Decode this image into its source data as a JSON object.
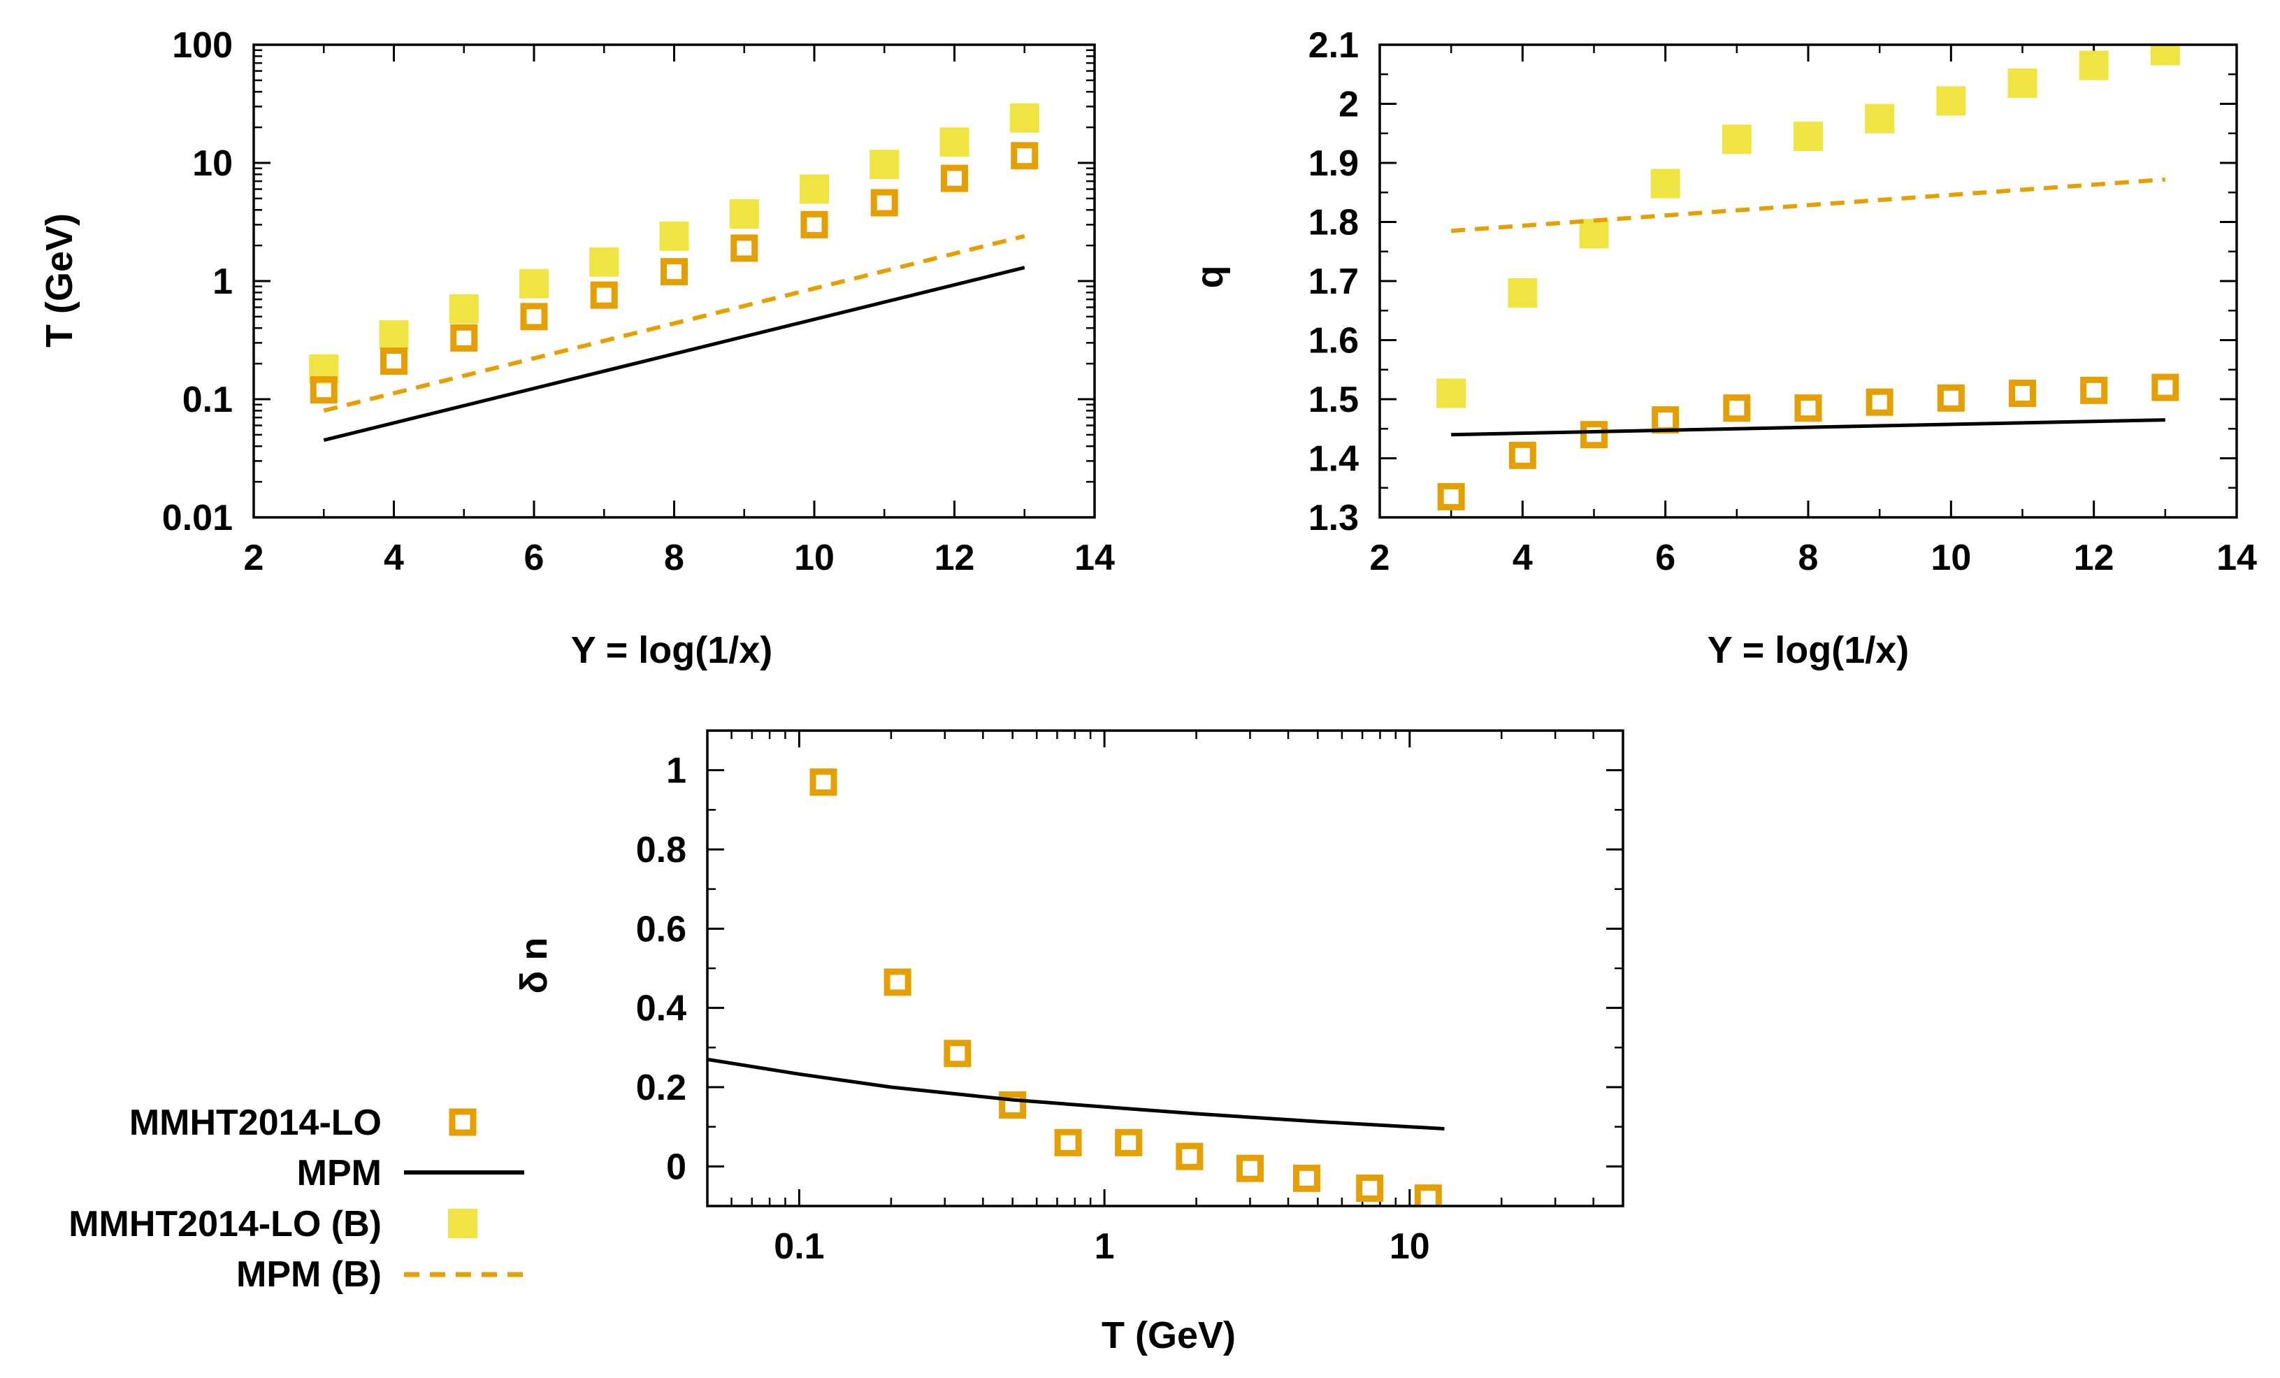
{
  "figure": {
    "colors": {
      "open_marker": "#E69F00",
      "filled_marker": "#F0E442",
      "mpm_line": "#000000",
      "mpm_b_line": "#E69F00",
      "axes": "#000000",
      "background": "#FFFFFF"
    },
    "legend": {
      "placement": "bottom-left",
      "items": [
        {
          "label": "MMHT2014-LO",
          "style": "open-square",
          "color": "#E69F00"
        },
        {
          "label": "MPM",
          "style": "solid-line",
          "color": "#000000"
        },
        {
          "label": "MMHT2014-LO (B)",
          "style": "filled-square",
          "color": "#F0E442"
        },
        {
          "label": "MPM (B)",
          "style": "dashed-line",
          "color": "#E69F00"
        }
      ]
    }
  },
  "chart_data": [
    {
      "id": "T_vs_Y",
      "type": "scatter",
      "title": "",
      "xlabel": "Y = log(1/x)",
      "ylabel": "T (GeV)",
      "xscale": "linear",
      "yscale": "log",
      "xlim": [
        2,
        14
      ],
      "ylim": [
        0.01,
        100
      ],
      "xticks": [
        2,
        4,
        6,
        8,
        10,
        12,
        14
      ],
      "xtick_labels": [
        "2",
        "4",
        "6",
        "8",
        "10",
        "12",
        "14"
      ],
      "yticks": [
        0.01,
        0.1,
        1,
        10,
        100
      ],
      "ytick_labels": [
        "0.01",
        "0.1",
        "1",
        "10",
        "100"
      ],
      "grid": false,
      "series": [
        {
          "name": "MMHT2014-LO",
          "style": "open-square",
          "x": [
            3,
            4,
            5,
            6,
            7,
            8,
            9,
            10,
            11,
            12,
            13
          ],
          "y": [
            0.12,
            0.21,
            0.33,
            0.5,
            0.76,
            1.2,
            1.9,
            3.0,
            4.6,
            7.4,
            11.5
          ]
        },
        {
          "name": "MMHT2014-LO (B)",
          "style": "filled-square",
          "x": [
            3,
            4,
            5,
            6,
            7,
            8,
            9,
            10,
            11,
            12,
            13
          ],
          "y": [
            0.18,
            0.35,
            0.58,
            0.95,
            1.45,
            2.4,
            3.7,
            6.0,
            9.7,
            15.0,
            24.0
          ]
        },
        {
          "name": "MPM",
          "style": "solid-line",
          "x": [
            3,
            13
          ],
          "y": [
            0.045,
            1.3
          ]
        },
        {
          "name": "MPM (B)",
          "style": "dashed-line",
          "x": [
            3,
            13
          ],
          "y": [
            0.08,
            2.4
          ]
        }
      ]
    },
    {
      "id": "q_vs_Y",
      "type": "scatter",
      "title": "",
      "xlabel": "Y = log(1/x)",
      "ylabel": "q",
      "xscale": "linear",
      "yscale": "linear",
      "xlim": [
        2,
        14
      ],
      "ylim": [
        1.3,
        2.1
      ],
      "xticks": [
        2,
        4,
        6,
        8,
        10,
        12,
        14
      ],
      "xtick_labels": [
        "2",
        "4",
        "6",
        "8",
        "10",
        "12",
        "14"
      ],
      "yticks": [
        1.3,
        1.4,
        1.5,
        1.6,
        1.7,
        1.8,
        1.9,
        2.0,
        2.1
      ],
      "ytick_labels": [
        "1.3",
        "1.4",
        "1.5",
        "1.6",
        "1.7",
        "1.8",
        "1.9",
        "2",
        "2.1"
      ],
      "grid": false,
      "series": [
        {
          "name": "MMHT2014-LO",
          "style": "open-square",
          "x": [
            3,
            4,
            5,
            6,
            7,
            8,
            9,
            10,
            11,
            12,
            13
          ],
          "y": [
            1.335,
            1.405,
            1.44,
            1.465,
            1.485,
            1.485,
            1.495,
            1.502,
            1.51,
            1.515,
            1.52
          ]
        },
        {
          "name": "MMHT2014-LO (B)",
          "style": "filled-square",
          "x": [
            3,
            4,
            5,
            6,
            7,
            8,
            9,
            10,
            11,
            12,
            13
          ],
          "y": [
            1.51,
            1.68,
            1.78,
            1.865,
            1.94,
            1.945,
            1.975,
            2.005,
            2.035,
            2.065,
            2.09
          ]
        },
        {
          "name": "MPM",
          "style": "solid-line",
          "x": [
            3,
            13
          ],
          "y": [
            1.44,
            1.465
          ]
        },
        {
          "name": "MPM (B)",
          "style": "dashed-line",
          "x": [
            3,
            13
          ],
          "y": [
            1.785,
            1.872
          ]
        }
      ]
    },
    {
      "id": "dn_vs_T",
      "type": "scatter",
      "title": "",
      "xlabel": "T (GeV)",
      "ylabel": "δ n",
      "xscale": "log",
      "yscale": "linear",
      "xlim": [
        0.05,
        50
      ],
      "ylim": [
        -0.1,
        1.1
      ],
      "xticks": [
        0.1,
        1,
        10
      ],
      "xtick_labels": [
        "0.1",
        "1",
        "10"
      ],
      "yticks": [
        0,
        0.2,
        0.4,
        0.6,
        0.8,
        1
      ],
      "ytick_labels": [
        "0",
        "0.2",
        "0.4",
        "0.6",
        "0.8",
        "1"
      ],
      "grid": false,
      "series": [
        {
          "name": "MMHT2014-LO",
          "style": "open-square",
          "x": [
            0.12,
            0.21,
            0.33,
            0.5,
            0.76,
            1.2,
            1.9,
            3.0,
            4.6,
            7.4,
            11.5
          ],
          "y": [
            0.97,
            0.465,
            0.285,
            0.155,
            0.06,
            0.06,
            0.025,
            -0.005,
            -0.03,
            -0.055,
            -0.08
          ]
        },
        {
          "name": "MPM",
          "style": "solid-line",
          "x": [
            0.05,
            0.1,
            0.2,
            0.5,
            1,
            2,
            5,
            13
          ],
          "y": [
            0.27,
            0.233,
            0.2,
            0.168,
            0.15,
            0.133,
            0.113,
            0.095
          ]
        }
      ]
    }
  ]
}
